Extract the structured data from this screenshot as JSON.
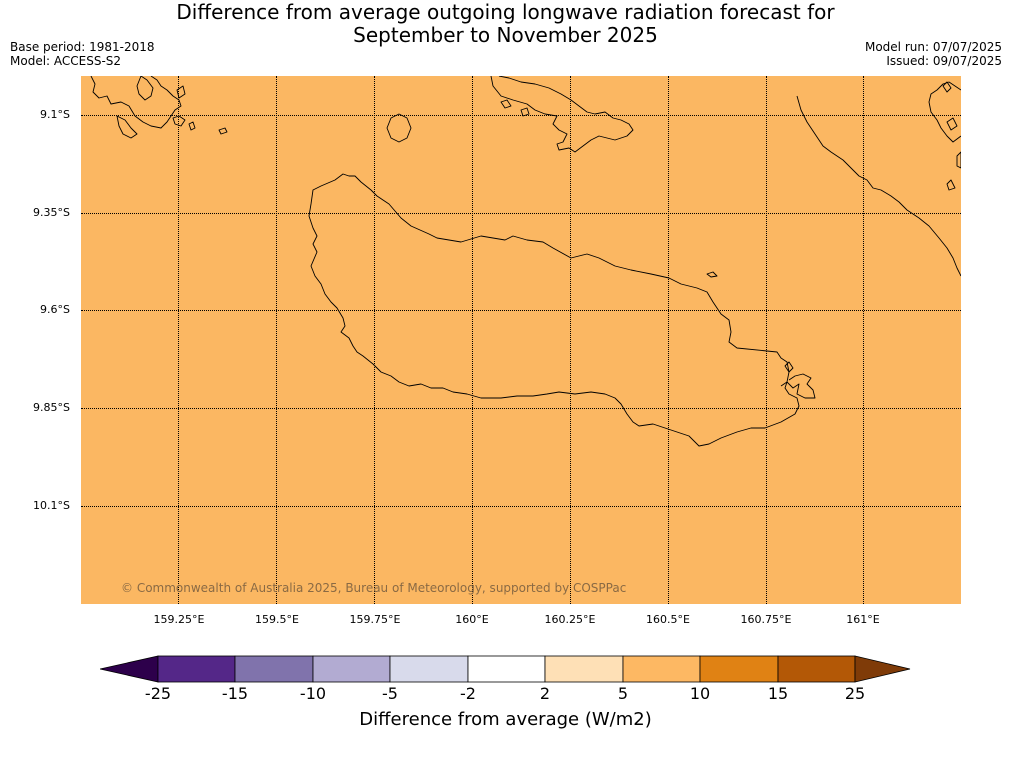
{
  "title_line1": "Difference from average outgoing longwave radiation forecast for",
  "title_line2": "September to November 2025",
  "meta": {
    "base_period": "Base period: 1981-2018",
    "model": "Model: ACCESS-S2",
    "model_run": "Model run: 07/07/2025",
    "issued": "Issued: 09/07/2025"
  },
  "map": {
    "fill_color": "#fbb762",
    "latitudes": [
      "9.1°S",
      "9.35°S",
      "9.6°S",
      "9.85°S",
      "10.1°S"
    ],
    "longitudes": [
      "159.25°E",
      "159.5°E",
      "159.75°E",
      "160°E",
      "160.25°E",
      "160.5°E",
      "160.75°E",
      "161°E"
    ],
    "copyright": "© Commonwealth of Australia 2025, Bureau of Meteorology, supported by COSPPac"
  },
  "colorbar": {
    "ticks": [
      "-25",
      "-15",
      "-10",
      "-5",
      "-2",
      "2",
      "5",
      "10",
      "15",
      "25"
    ],
    "colors": [
      "#2d004b",
      "#542788",
      "#8073ac",
      "#b2abd2",
      "#d8daeb",
      "#ffffff",
      "#fee0b6",
      "#fdb863",
      "#e08214",
      "#b35806",
      "#7f3b08"
    ],
    "label": "Difference from average (W/m2)"
  }
}
